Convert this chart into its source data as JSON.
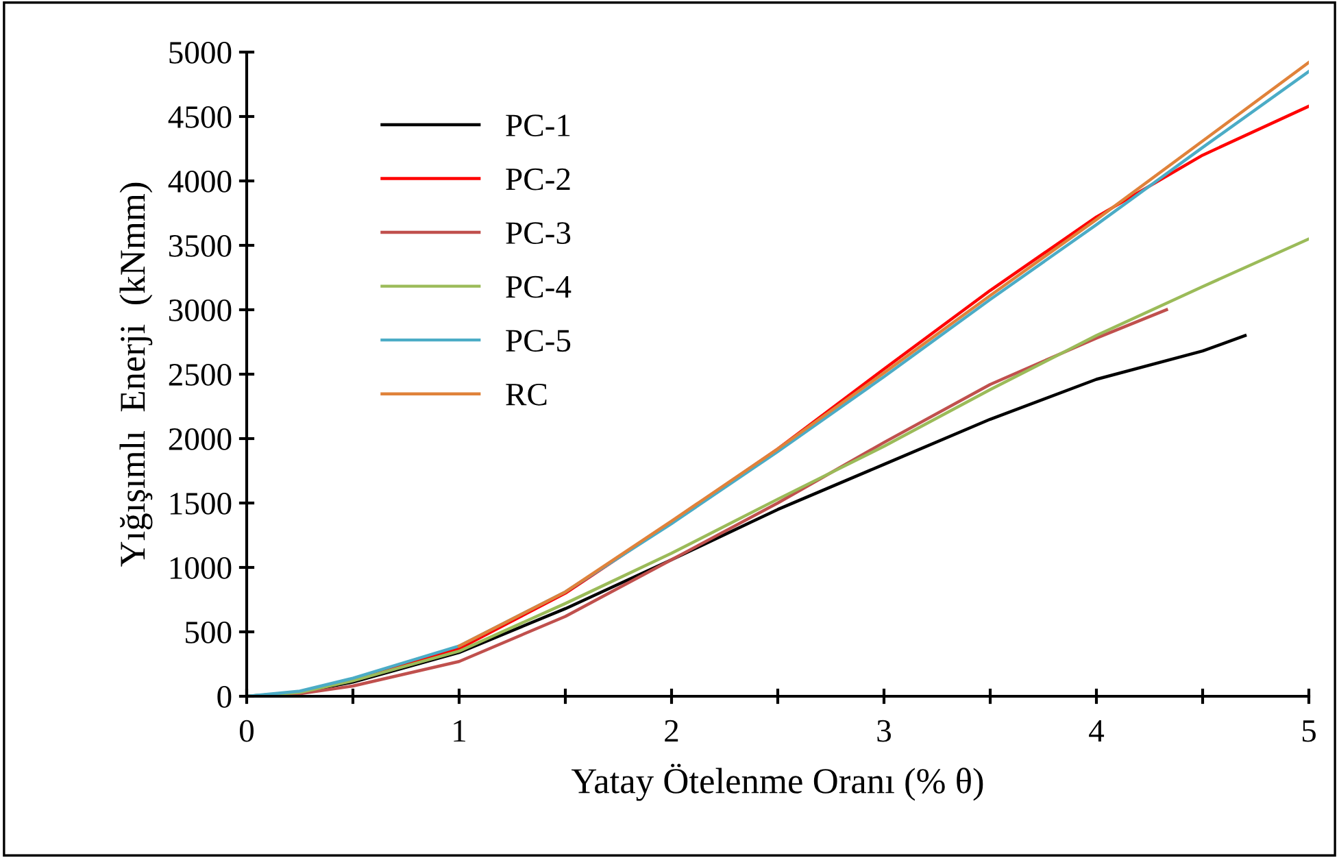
{
  "chart_data": {
    "type": "line",
    "xlabel": "Yatay Ötelenme Oranı (% θ)",
    "ylabel": "Yığışımlı  Enerji  (kNmm)",
    "xlim": [
      0,
      5
    ],
    "ylim": [
      0,
      5000
    ],
    "xticks": [
      0,
      {
        "value": 0.5,
        "label": null
      },
      1,
      {
        "value": 1.5,
        "label": null
      },
      2,
      {
        "value": 2.5,
        "label": null
      },
      3,
      {
        "value": 3.5,
        "label": null
      },
      4,
      {
        "value": 4.5,
        "label": null
      },
      5
    ],
    "yticks": [
      0,
      500,
      1000,
      1500,
      2000,
      2500,
      3000,
      3500,
      4000,
      4500,
      5000
    ],
    "grid": false,
    "legend": "top left",
    "marker": "none",
    "line_style": "solid",
    "series": [
      {
        "name": "PC-1",
        "color": "#000000",
        "x": [
          0,
          0.25,
          0.5,
          1,
          1.5,
          2,
          2.5,
          3,
          3.5,
          4,
          4.5,
          4.7
        ],
        "values": [
          0,
          30,
          110,
          340,
          680,
          1060,
          1450,
          1800,
          2150,
          2460,
          2680,
          2800
        ]
      },
      {
        "name": "PC-2",
        "color": "#ff0000",
        "x": [
          0.5,
          1,
          1.5,
          2,
          2.5,
          3,
          3.5,
          4,
          4.5,
          5
        ],
        "values": [
          130,
          370,
          800,
          1350,
          1920,
          2540,
          3150,
          3720,
          4200,
          4580
        ]
      },
      {
        "name": "PC-3",
        "color": "#c0504d",
        "x": [
          0,
          0.25,
          0.5,
          1,
          1.5,
          2,
          2.5,
          3,
          3.5,
          4,
          4.33
        ],
        "values": [
          0,
          20,
          80,
          270,
          620,
          1060,
          1500,
          1970,
          2420,
          2780,
          3000
        ]
      },
      {
        "name": "PC-4",
        "color": "#9bbb59",
        "x": [
          0,
          0.25,
          0.5,
          1,
          1.5,
          2,
          2.5,
          3,
          3.5,
          4,
          4.5,
          5
        ],
        "values": [
          0,
          30,
          120,
          350,
          720,
          1110,
          1530,
          1940,
          2380,
          2800,
          3180,
          3550
        ]
      },
      {
        "name": "PC-5",
        "color": "#4bacc6",
        "x": [
          0,
          0.25,
          0.5,
          1,
          1.5,
          2,
          2.5,
          3,
          3.5,
          4,
          4.5,
          5
        ],
        "values": [
          0,
          40,
          140,
          390,
          810,
          1340,
          1900,
          2480,
          3080,
          3660,
          4260,
          4850
        ]
      },
      {
        "name": "RC",
        "color": "#e0823a",
        "x": [
          1,
          1.5,
          2,
          2.5,
          3,
          3.5,
          4,
          4.5,
          5
        ],
        "values": [
          390,
          810,
          1360,
          1920,
          2510,
          3110,
          3700,
          4310,
          4920
        ]
      }
    ]
  }
}
